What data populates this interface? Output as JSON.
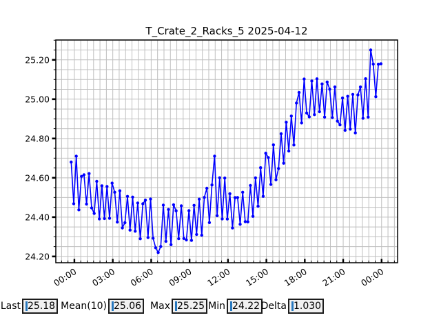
{
  "figure": {
    "background": "#ffffff"
  },
  "chart_data": {
    "type": "line",
    "title": "T_Crate_2_Racks_5 2025-04-12",
    "series": [
      {
        "name": "T_Crate_2_Racks_5",
        "color": "#0000ff",
        "marker": "circle",
        "marker_radius": 2.2,
        "line_width": 1.6
      }
    ],
    "xlabel": "",
    "ylabel": "",
    "x_unit": "time of day (hours)",
    "xlim": [
      -1.45,
      25.25
    ],
    "ylim": [
      24.168,
      25.301
    ],
    "x_major_ticks_h": [
      0,
      3,
      6,
      9,
      12,
      15,
      18,
      21,
      24
    ],
    "x_major_tick_labels": [
      "00:00",
      "03:00",
      "06:00",
      "09:00",
      "12:00",
      "15:00",
      "18:00",
      "21:00",
      "00:00"
    ],
    "x_minor_step_h": 0.5,
    "y_major_ticks": [
      24.2,
      24.4,
      24.6,
      24.8,
      25.0,
      25.2
    ],
    "y_major_tick_labels": [
      "24.20",
      "24.40",
      "24.60",
      "24.80",
      "25.00",
      "25.20"
    ],
    "y_minor_step": 0.05,
    "grid": true,
    "grid_color": "#bfbfbf",
    "legend": "none",
    "sampling": {
      "t_start_h": -0.25,
      "t_step_h": 0.2,
      "n_points": 122
    },
    "envelope_t_mid_amp": [
      [
        -0.25,
        24.56,
        0.12
      ],
      [
        1,
        24.52,
        0.11
      ],
      [
        2,
        24.5,
        0.11
      ],
      [
        3,
        24.47,
        0.11
      ],
      [
        4,
        24.45,
        0.11
      ],
      [
        5,
        24.41,
        0.12
      ],
      [
        6,
        24.37,
        0.12
      ],
      [
        6.5,
        24.35,
        0.13
      ],
      [
        7.5,
        24.34,
        0.12
      ],
      [
        8.5,
        24.36,
        0.11
      ],
      [
        9.5,
        24.4,
        0.11
      ],
      [
        10.5,
        24.45,
        0.12
      ],
      [
        11.2,
        24.49,
        0.15
      ],
      [
        12,
        24.47,
        0.11
      ],
      [
        12.8,
        24.41,
        0.11
      ],
      [
        13.4,
        24.44,
        0.1
      ],
      [
        14,
        24.52,
        0.11
      ],
      [
        15,
        24.62,
        0.12
      ],
      [
        16,
        24.74,
        0.12
      ],
      [
        17,
        24.86,
        0.12
      ],
      [
        17.8,
        24.97,
        0.12
      ],
      [
        18.4,
        25.02,
        0.12
      ],
      [
        19,
        25.0,
        0.11
      ],
      [
        20,
        24.97,
        0.11
      ],
      [
        21,
        24.95,
        0.11
      ],
      [
        21.8,
        24.94,
        0.12
      ],
      [
        22.5,
        24.97,
        0.11
      ],
      [
        23.1,
        25.06,
        0.15
      ],
      [
        23.5,
        25.09,
        0.11
      ],
      [
        23.95,
        25.06,
        0.1
      ]
    ],
    "sign_cycle": [
      1,
      -1,
      1,
      -1,
      1,
      1,
      -1,
      1,
      -1,
      -1,
      1,
      -1
    ],
    "noise_magnitude_cycle": [
      1.0,
      0.72,
      0.55,
      0.9,
      0.64,
      0.78,
      0.5,
      0.95,
      0.6,
      0.82,
      0.7,
      1.0,
      0.58,
      0.88,
      0.66,
      0.76,
      0.92,
      0.54,
      0.8,
      0.68
    ],
    "point_overrides_t_v": [
      [
        0.15,
        24.71
      ],
      [
        6.55,
        24.22
      ],
      [
        10.9,
        24.71
      ],
      [
        23.15,
        25.25
      ],
      [
        23.95,
        25.18
      ]
    ],
    "value_min": 24.22,
    "value_max": 25.25
  },
  "stat_bar": {
    "fields": [
      {
        "label": "Last",
        "value": "25.18"
      },
      {
        "label": "Mean(10)",
        "value": "25.06"
      },
      {
        "label": "Max",
        "value": "25.25"
      },
      {
        "label": "Min",
        "value": "24.22"
      },
      {
        "label": "Delta",
        "value": "1.030"
      }
    ],
    "caret_color": "#2878be",
    "box_background": "#f1f1f1",
    "box_border": "#1c1c1c"
  }
}
